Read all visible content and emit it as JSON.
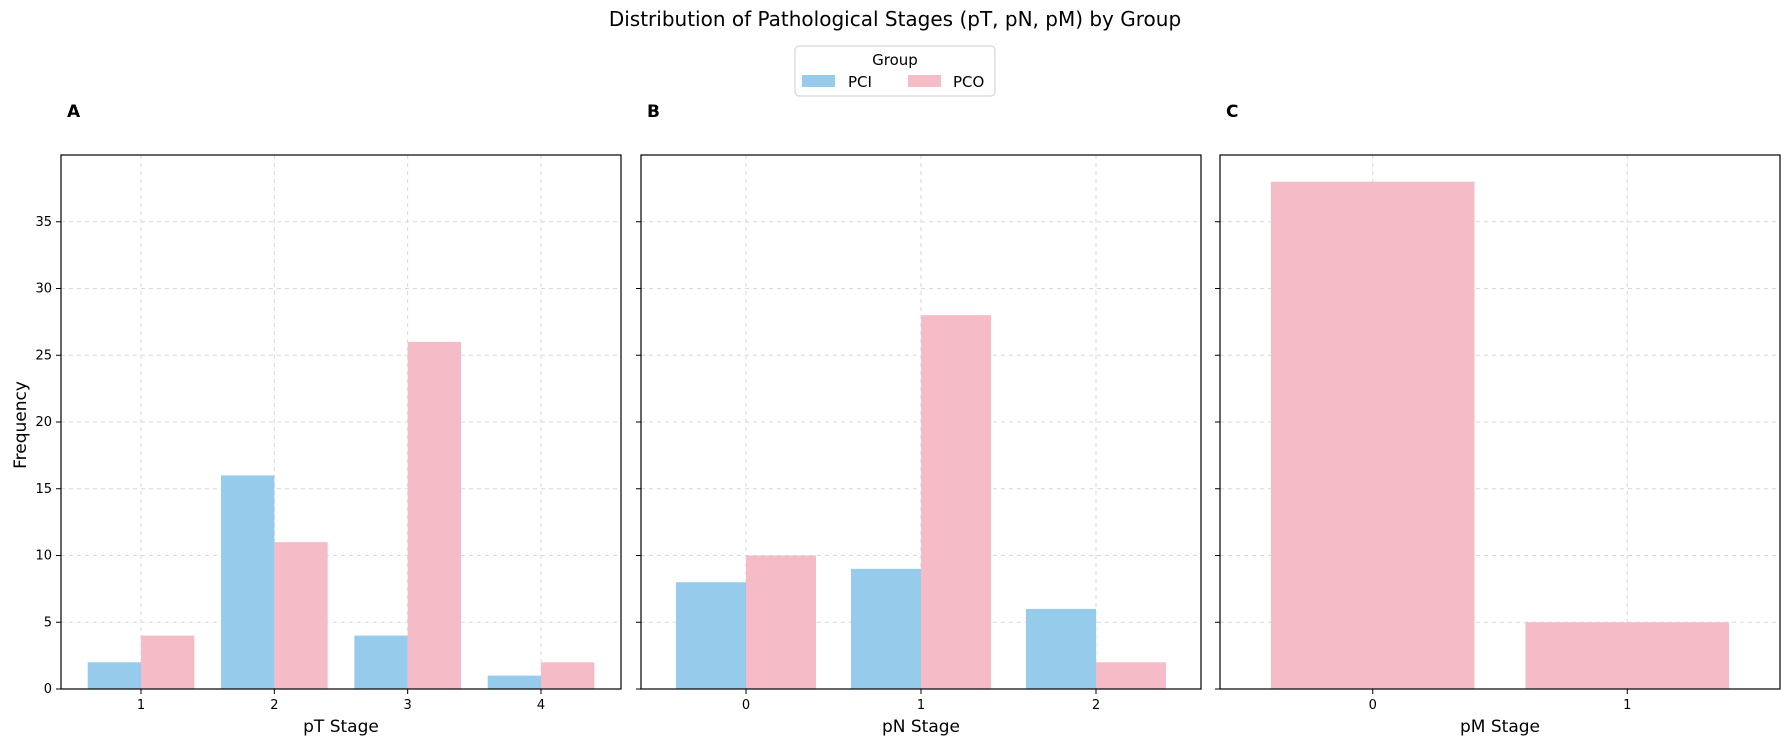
{
  "chart_data": {
    "title": "Distribution of Pathological Stages (pT, pN, pM) by Group",
    "legend": {
      "title": "Group",
      "placement": "top-center",
      "entries": [
        "PCI",
        "PCO"
      ]
    },
    "colors": {
      "PCI": "#97CBEC",
      "PCO": "#F5BBC6"
    },
    "shared_ylabel": "Frequency",
    "ylim": [
      0,
      40
    ],
    "yticks": [
      0,
      5,
      10,
      15,
      20,
      25,
      30,
      35
    ],
    "grid": true,
    "panels": [
      {
        "panel_label": "A",
        "type": "bar",
        "xlabel": "pT Stage",
        "categories": [
          "1",
          "2",
          "3",
          "4"
        ],
        "series": [
          {
            "name": "PCI",
            "values": [
              2,
              16,
              4,
              1
            ]
          },
          {
            "name": "PCO",
            "values": [
              4,
              11,
              26,
              2
            ]
          }
        ]
      },
      {
        "panel_label": "B",
        "type": "bar",
        "xlabel": "pN Stage",
        "categories": [
          "0",
          "1",
          "2"
        ],
        "series": [
          {
            "name": "PCI",
            "values": [
              8,
              9,
              6
            ]
          },
          {
            "name": "PCO",
            "values": [
              10,
              28,
              2
            ]
          }
        ]
      },
      {
        "panel_label": "C",
        "type": "bar",
        "xlabel": "pM Stage",
        "categories": [
          "0",
          "1"
        ],
        "series": [
          {
            "name": "PCO",
            "values": [
              38,
              5
            ]
          }
        ]
      }
    ]
  }
}
